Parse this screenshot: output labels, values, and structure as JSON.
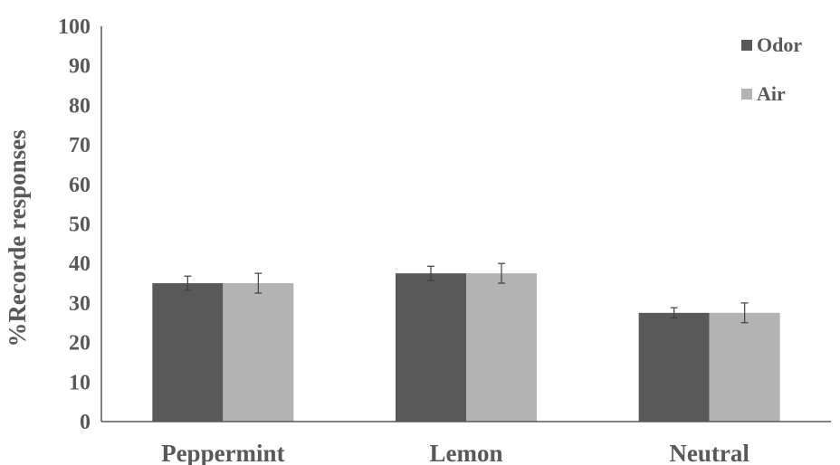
{
  "chart_data": {
    "type": "bar",
    "title": "",
    "xlabel": "",
    "ylabel": "%Recorde responses",
    "ylim": [
      0,
      100
    ],
    "yticks": [
      "0",
      "10",
      "20",
      "30",
      "40",
      "50",
      "60",
      "70",
      "80",
      "90",
      "100"
    ],
    "categories": [
      "Peppermint",
      "Lemon",
      "Neutral"
    ],
    "series": [
      {
        "name": "Odor",
        "color": "#595959",
        "values": [
          35,
          37.5,
          27.5
        ],
        "error": [
          1.8,
          1.8,
          1.3
        ]
      },
      {
        "name": "Air",
        "color": "#b3b3b3",
        "values": [
          35,
          37.5,
          27.5
        ],
        "error": [
          2.5,
          2.5,
          2.5
        ]
      }
    ],
    "legend_position": "top-right",
    "grid": false
  }
}
